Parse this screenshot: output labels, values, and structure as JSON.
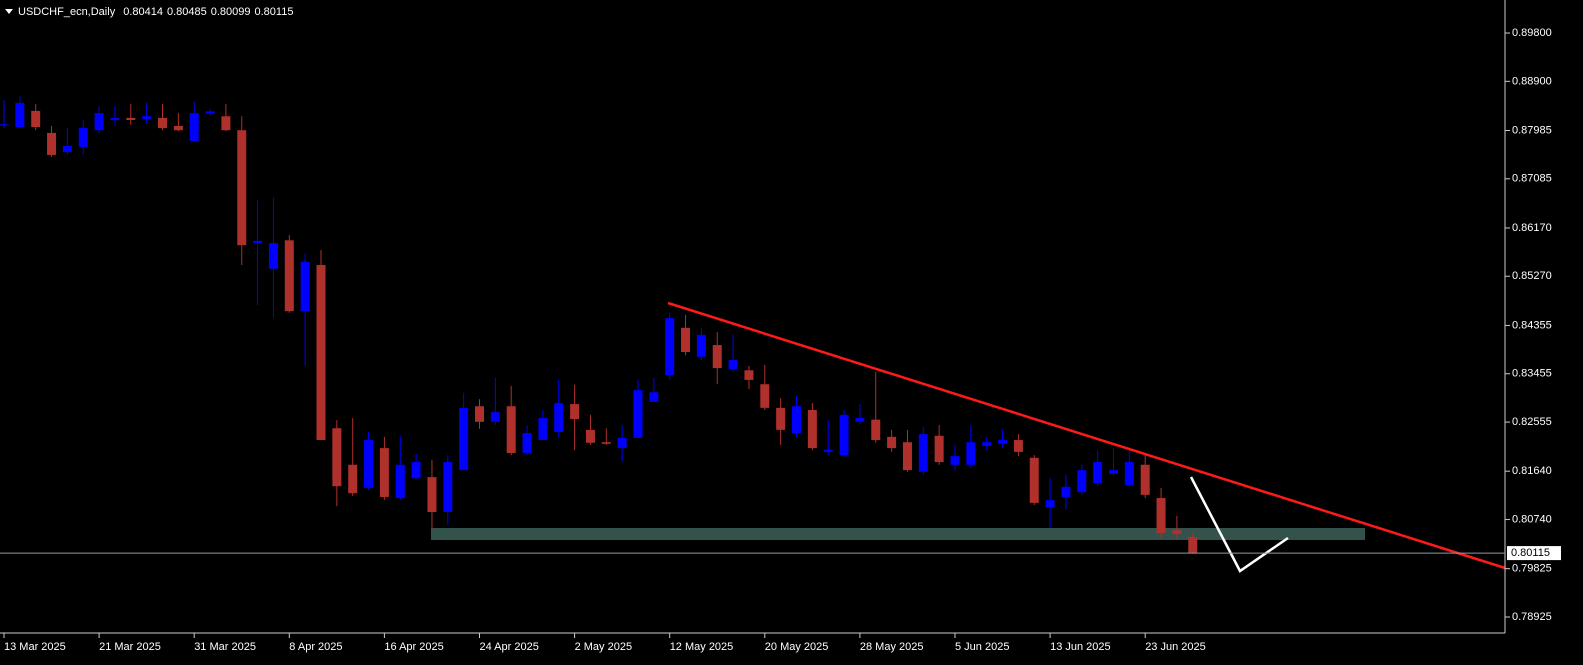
{
  "chart_data": {
    "type": "candlestick",
    "title": "USDCHF_ecn,Daily",
    "header_values": [
      0.80414,
      0.80485,
      0.80099,
      0.80115
    ],
    "current_price": 0.80115,
    "categories": [
      "13 Mar 2025",
      null,
      null,
      null,
      null,
      null,
      "21 Mar 2025",
      null,
      null,
      null,
      null,
      null,
      "31 Mar 2025",
      null,
      null,
      null,
      null,
      null,
      "8 Apr 2025",
      null,
      null,
      null,
      null,
      null,
      "16 Apr 2025",
      null,
      null,
      null,
      null,
      null,
      "24 Apr 2025",
      null,
      null,
      null,
      null,
      null,
      "2 May 2025",
      null,
      null,
      null,
      null,
      null,
      "12 May 2025",
      null,
      null,
      null,
      null,
      null,
      "20 May 2025",
      null,
      null,
      null,
      null,
      null,
      "28 May 2025",
      null,
      null,
      null,
      null,
      null,
      "5 Jun 2025",
      null,
      null,
      null,
      null,
      null,
      "13 Jun 2025",
      null,
      null,
      null,
      null,
      null,
      "23 Jun 2025",
      null,
      null,
      null
    ],
    "open": [
      0.8808,
      0.8805,
      0.8835,
      0.8794,
      0.8758,
      0.8768,
      0.8799,
      0.8818,
      0.8822,
      0.882,
      0.8822,
      0.8807,
      0.8779,
      0.883,
      0.8825,
      0.8799,
      0.8589,
      0.8541,
      0.8594,
      0.8462,
      0.8548,
      0.8244,
      0.8176,
      0.8133,
      0.8207,
      0.8114,
      0.8151,
      0.8153,
      0.8088,
      0.8166,
      0.8285,
      0.8256,
      0.8285,
      0.8198,
      0.8222,
      0.8237,
      0.8289,
      0.8241,
      0.8218,
      0.8207,
      0.8226,
      0.8293,
      0.8343,
      0.8431,
      0.8377,
      0.8399,
      0.8354,
      0.8352,
      0.8326,
      0.8282,
      0.8235,
      0.8278,
      0.82,
      0.8194,
      0.8256,
      0.826,
      0.8228,
      0.8218,
      0.8163,
      0.823,
      0.8176,
      0.8176,
      0.8211,
      0.8215,
      0.8222,
      0.8189,
      0.8097,
      0.8116,
      0.8125,
      0.8142,
      0.8159,
      0.8138,
      0.8176,
      0.8114,
      0.8054,
      0.80414
    ],
    "high": [
      0.8855,
      0.8863,
      0.8848,
      0.8807,
      0.8803,
      0.8818,
      0.8844,
      0.8844,
      0.8848,
      0.885,
      0.8848,
      0.8831,
      0.8852,
      0.8838,
      0.8848,
      0.8825,
      0.8669,
      0.8673,
      0.8604,
      0.857,
      0.8576,
      0.8259,
      0.8263,
      0.8237,
      0.8228,
      0.823,
      0.8196,
      0.8185,
      0.8194,
      0.831,
      0.8298,
      0.8338,
      0.8323,
      0.825,
      0.8278,
      0.8334,
      0.8325,
      0.8269,
      0.8244,
      0.825,
      0.8334,
      0.8338,
      0.8459,
      0.8455,
      0.8431,
      0.8423,
      0.8418,
      0.836,
      0.8362,
      0.83,
      0.8304,
      0.8291,
      0.8259,
      0.8278,
      0.8289,
      0.8349,
      0.8241,
      0.8241,
      0.8246,
      0.825,
      0.8213,
      0.825,
      0.8228,
      0.8241,
      0.8233,
      0.8194,
      0.8151,
      0.8157,
      0.8176,
      0.8203,
      0.8207,
      0.8203,
      0.8194,
      0.8133,
      0.8081,
      0.80485
    ],
    "low": [
      0.8803,
      0.8803,
      0.8799,
      0.8749,
      0.8753,
      0.8753,
      0.8794,
      0.8809,
      0.8809,
      0.8811,
      0.8799,
      0.8797,
      0.8779,
      0.8827,
      0.8797,
      0.8548,
      0.8473,
      0.8449,
      0.8459,
      0.836,
      0.8222,
      0.8099,
      0.8118,
      0.8129,
      0.811,
      0.811,
      0.8148,
      0.8055,
      0.8064,
      0.8166,
      0.8243,
      0.825,
      0.8194,
      0.8194,
      0.8222,
      0.8226,
      0.8203,
      0.8213,
      0.8213,
      0.8181,
      0.8226,
      0.8293,
      0.8334,
      0.838,
      0.8371,
      0.8326,
      0.8349,
      0.8317,
      0.8278,
      0.8213,
      0.8228,
      0.8203,
      0.8194,
      0.819,
      0.8252,
      0.8217,
      0.82,
      0.8163,
      0.8157,
      0.8176,
      0.8166,
      0.817,
      0.8203,
      0.8207,
      0.8192,
      0.8101,
      0.8058,
      0.8092,
      0.812,
      0.8136,
      0.8155,
      0.8135,
      0.8114,
      0.804,
      0.8036,
      0.80099
    ],
    "close": [
      0.881,
      0.885,
      0.8805,
      0.8753,
      0.877,
      0.8803,
      0.8831,
      0.8822,
      0.8818,
      0.8825,
      0.8803,
      0.8799,
      0.8831,
      0.8834,
      0.8799,
      0.8585,
      0.8593,
      0.8589,
      0.8462,
      0.8554,
      0.8222,
      0.8136,
      0.8123,
      0.8222,
      0.8116,
      0.8176,
      0.8181,
      0.8088,
      0.8181,
      0.8282,
      0.8256,
      0.8274,
      0.8198,
      0.8235,
      0.8263,
      0.8291,
      0.8261,
      0.8217,
      0.8215,
      0.8226,
      0.8315,
      0.8311,
      0.8449,
      0.8386,
      0.8418,
      0.8356,
      0.8371,
      0.8334,
      0.8282,
      0.8241,
      0.8285,
      0.8207,
      0.8204,
      0.8269,
      0.8263,
      0.8222,
      0.8207,
      0.8166,
      0.8233,
      0.8181,
      0.8192,
      0.8218,
      0.8218,
      0.8222,
      0.82,
      0.8105,
      0.811,
      0.8135,
      0.8166,
      0.8181,
      0.8166,
      0.8181,
      0.812,
      0.8049,
      0.8047,
      0.80115
    ],
    "up_color": "#0000ff",
    "down_color": "#b0302c",
    "ylim": [
      0.78627,
      0.90415
    ],
    "yticks": [
      {
        "value": 0.898,
        "label": "0.89800"
      },
      {
        "value": 0.889,
        "label": "0.88900"
      },
      0.87985,
      0.87085,
      {
        "value": 0.8617,
        "label": "0.86170"
      },
      {
        "value": 0.8527,
        "label": "0.85270"
      },
      0.84355,
      0.83455,
      0.82555,
      {
        "value": 0.8164,
        "label": "0.81640"
      },
      {
        "value": 0.8074,
        "label": "0.80740"
      },
      0.79825,
      0.78925
    ]
  }
}
